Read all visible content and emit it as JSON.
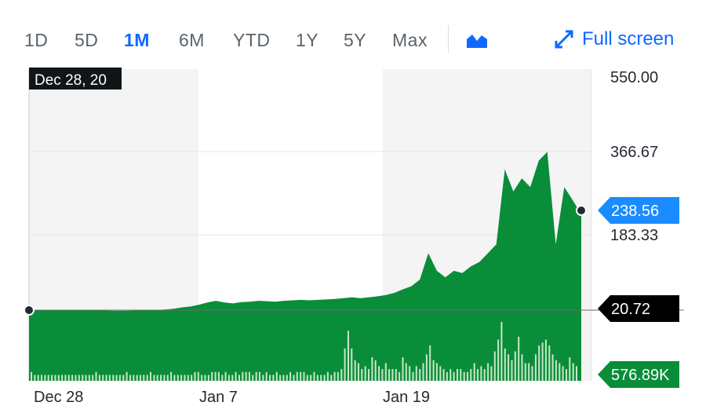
{
  "ranges": [
    "1D",
    "5D",
    "1M",
    "6M",
    "YTD",
    "1Y",
    "5Y",
    "Max"
  ],
  "active_range": "1M",
  "fullscreen_label": "Full screen",
  "chart_type_icon": "area-chart-icon",
  "colors": {
    "accent": "#0f69ff",
    "area": "#0a8d38",
    "volume": "#c8e6c9",
    "current_tag": "#1a8cff",
    "volume_tag": "#0a8d38"
  },
  "chart_data": {
    "type": "area",
    "hover_date_label": "Dec 28, 20",
    "y_axis_labels": [
      "550.00",
      "366.67",
      "183.33"
    ],
    "ylim": [
      0,
      550
    ],
    "x_tick_labels": [
      "Dec 28",
      "Jan 7",
      "Jan 19"
    ],
    "current_price_label": "238.56",
    "previous_close_label": "20.72",
    "volume_label": "576.89K",
    "price_series": [
      20.72,
      20.8,
      20.6,
      20.5,
      20.4,
      20.3,
      20.1,
      20.0,
      19.9,
      19.8,
      19.5,
      19.3,
      19.6,
      20.1,
      20.5,
      21.0,
      22.0,
      24.0,
      27.0,
      29.0,
      33.0,
      38.0,
      42.0,
      38.0,
      36.0,
      39.0,
      40.0,
      42.0,
      41.0,
      40.0,
      42.0,
      43.0,
      44.0,
      43.0,
      44.0,
      45.0,
      46.0,
      48.0,
      50.0,
      48.0,
      50.0,
      52.0,
      55.0,
      60.0,
      68.0,
      75.0,
      90.0,
      150.0,
      110.0,
      95.0,
      110.0,
      105.0,
      120.0,
      130.0,
      150.0,
      170.0,
      340.0,
      290.0,
      320.0,
      300.0,
      360.0,
      380.0,
      170.0,
      300.0,
      270.0,
      238.56
    ],
    "volume_series": [
      3,
      2,
      2,
      2,
      2,
      2,
      2,
      2,
      2,
      2,
      2,
      2,
      2,
      2,
      2,
      2,
      2,
      2,
      2,
      3,
      2,
      2,
      2,
      2,
      2,
      2,
      2,
      2,
      3,
      2,
      2,
      2,
      2,
      2,
      2,
      3,
      2,
      2,
      2,
      2,
      2,
      3,
      2,
      2,
      2,
      2,
      2,
      2,
      3,
      3,
      2,
      2,
      2,
      3,
      3,
      3,
      2,
      3,
      2,
      2,
      3,
      2,
      3,
      3,
      3,
      2,
      3,
      3,
      2,
      3,
      2,
      2,
      3,
      2,
      2,
      2,
      3,
      2,
      3,
      3,
      3,
      2,
      2,
      3,
      2,
      2,
      2,
      3,
      2,
      3,
      3,
      4,
      11,
      17,
      11,
      7,
      6,
      4,
      5,
      4,
      8,
      7,
      5,
      4,
      6,
      4,
      4,
      4,
      3,
      8,
      6,
      5,
      3,
      5,
      4,
      6,
      9,
      12,
      7,
      6,
      5,
      4,
      3,
      4,
      3,
      4,
      4,
      3,
      3,
      4,
      6,
      4,
      5,
      4,
      6,
      5,
      10,
      14,
      20,
      11,
      9,
      7,
      10,
      15,
      9,
      6,
      6,
      5,
      9,
      12,
      13,
      14,
      12,
      9,
      7,
      6,
      5,
      4,
      8,
      6,
      5
    ],
    "grid": true
  }
}
